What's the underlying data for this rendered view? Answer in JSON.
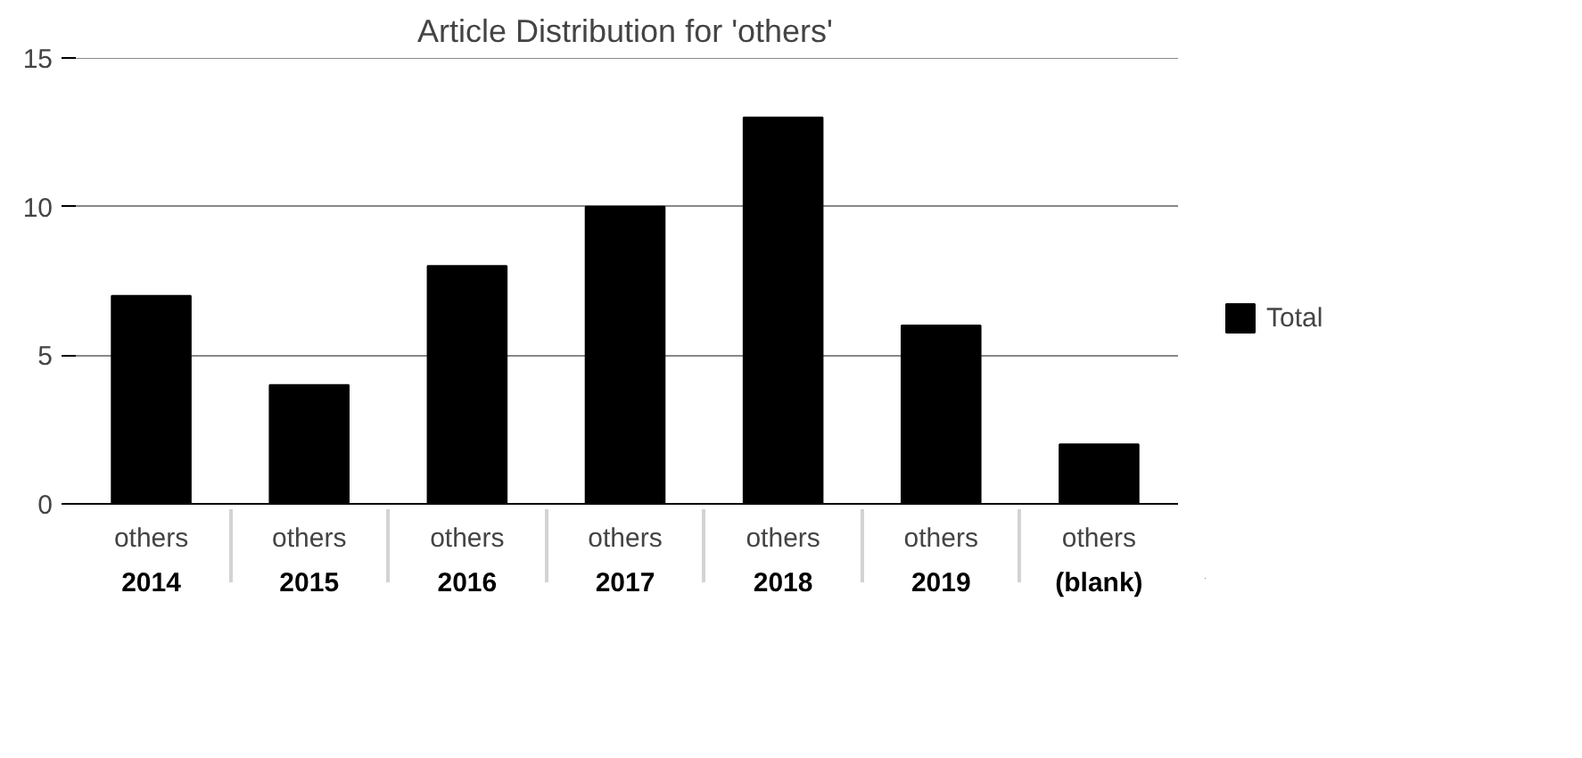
{
  "chart_data": {
    "type": "bar",
    "title": "Article Distribution for 'others'",
    "categories": [
      "others\n2014",
      "others\n2015",
      "others\n2016",
      "others\n2017",
      "others\n2018",
      "others\n2019",
      "others\n(blank)"
    ],
    "series": [
      {
        "name": "Total",
        "color": "#000000",
        "values": [
          7,
          4,
          8,
          10,
          13,
          6,
          2
        ]
      }
    ],
    "ylim": [
      0,
      15
    ],
    "yticks": [
      0,
      5,
      10,
      15
    ],
    "grid": "y",
    "legend": "right"
  }
}
